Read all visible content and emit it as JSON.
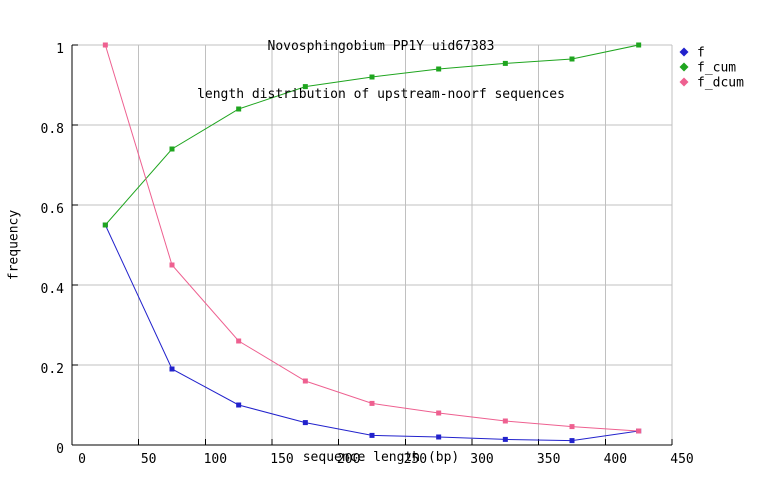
{
  "chart_data": {
    "type": "line",
    "title": "Novosphingobium PP1Y uid67383",
    "subtitle": "length distribution of upstream-noorf sequences",
    "xlabel": "sequence length (bp)",
    "ylabel": "frequency",
    "xlim": [
      0,
      450
    ],
    "ylim": [
      0,
      1
    ],
    "xticks": [
      0,
      50,
      100,
      150,
      200,
      250,
      300,
      350,
      400,
      450
    ],
    "xtick_labels": [
      "0",
      "50",
      "100",
      "150",
      "200",
      "250",
      "300",
      "350",
      "400",
      "450"
    ],
    "yticks": [
      0,
      0.2,
      0.4,
      0.6,
      0.8,
      1
    ],
    "ytick_labels": [
      "0",
      "0.2",
      "0.4",
      "0.6",
      "0.8",
      "1"
    ],
    "grid": true,
    "legend_position": "top-right-outside",
    "x": [
      25,
      75,
      125,
      175,
      225,
      275,
      325,
      375,
      425
    ],
    "series": [
      {
        "name": "f",
        "color": "#2222cc",
        "values": [
          0.55,
          0.19,
          0.1,
          0.056,
          0.024,
          0.02,
          0.014,
          0.011,
          0.035
        ]
      },
      {
        "name": "f_cum",
        "color": "#1fa51f",
        "values": [
          0.55,
          0.74,
          0.84,
          0.896,
          0.92,
          0.94,
          0.954,
          0.965,
          1.0
        ]
      },
      {
        "name": "f_dcum",
        "color": "#ee6090",
        "values": [
          1.0,
          0.45,
          0.26,
          0.16,
          0.104,
          0.08,
          0.06,
          0.046,
          0.035
        ]
      }
    ],
    "colors": {
      "background": "#ffffff",
      "grid": "#c0c0c0",
      "axis": "#000000",
      "text": "#000000"
    }
  }
}
